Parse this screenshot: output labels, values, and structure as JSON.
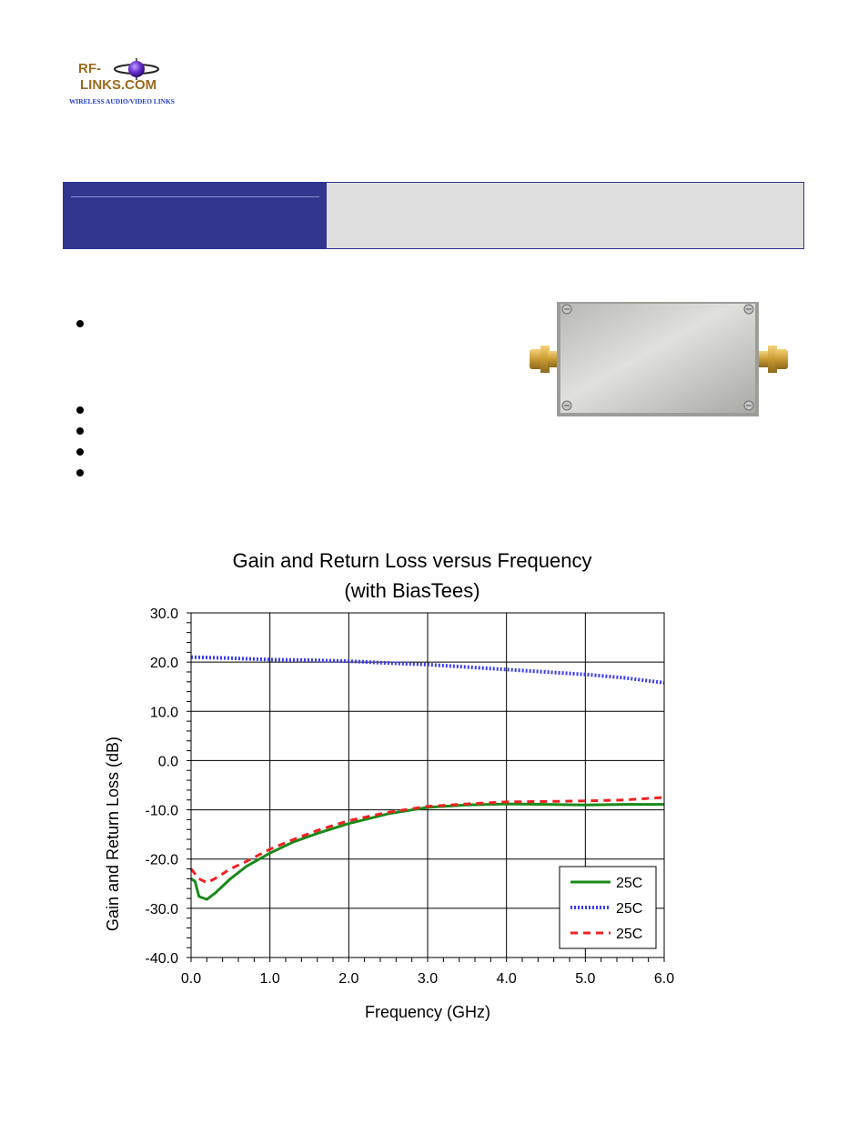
{
  "logo": {
    "line1": "RF-",
    "line2": "LINKS.COM",
    "tagline": "WIRELESS AUDIO/VIDEO LINKS"
  },
  "colors": {
    "header_left": "#33368f",
    "header_right": "#dedede",
    "series_green": "#1a8a1a",
    "series_blue": "#3c3cf0",
    "series_red": "#ee2222"
  },
  "chart_data": {
    "type": "line",
    "title_line1": "Gain and Return Loss versus Frequency",
    "title_line2": "(with BiasTees)",
    "xlabel": "Frequency (GHz)",
    "ylabel": "Gain and Return Loss (dB)",
    "xlim": [
      0.0,
      6.0
    ],
    "ylim": [
      -40.0,
      30.0
    ],
    "x_ticks": [
      "0.0",
      "1.0",
      "2.0",
      "3.0",
      "4.0",
      "5.0",
      "6.0"
    ],
    "y_ticks": [
      "30.0",
      "20.0",
      "10.0",
      "0.0",
      "-10.0",
      "-20.0",
      "-30.0",
      "-40.0"
    ],
    "grid": true,
    "legend_position": "bottom-right",
    "series": [
      {
        "name": "25C",
        "style": "solid",
        "color": "#1a8a1a",
        "x": [
          0.0,
          0.05,
          0.1,
          0.2,
          0.3,
          0.5,
          0.7,
          1.0,
          1.3,
          1.6,
          2.0,
          2.5,
          3.0,
          3.5,
          4.0,
          4.5,
          5.0,
          5.5,
          6.0
        ],
        "y": [
          -24.0,
          -24.5,
          -27.6,
          -28.2,
          -27.0,
          -24.0,
          -21.5,
          -18.8,
          -16.5,
          -14.8,
          -12.8,
          -10.8,
          -9.5,
          -9.0,
          -8.8,
          -8.9,
          -9.0,
          -8.9,
          -8.9
        ]
      },
      {
        "name": "25C",
        "style": "dotted",
        "color": "#3c3cf0",
        "x": [
          0.0,
          0.5,
          1.0,
          1.5,
          2.0,
          2.5,
          3.0,
          3.5,
          4.0,
          4.5,
          5.0,
          5.5,
          6.0
        ],
        "y": [
          21.0,
          20.8,
          20.5,
          20.4,
          20.2,
          19.8,
          19.5,
          19.0,
          18.5,
          18.0,
          17.5,
          16.8,
          15.8
        ]
      },
      {
        "name": "25C",
        "style": "dashed",
        "color": "#ee2222",
        "x": [
          0.0,
          0.05,
          0.1,
          0.2,
          0.3,
          0.5,
          0.7,
          1.0,
          1.3,
          1.6,
          2.0,
          2.5,
          3.0,
          3.5,
          4.0,
          4.5,
          5.0,
          5.5,
          6.0
        ],
        "y": [
          -22.0,
          -23.0,
          -24.0,
          -24.8,
          -24.0,
          -22.0,
          -20.5,
          -18.0,
          -16.0,
          -14.2,
          -12.2,
          -10.5,
          -9.3,
          -8.8,
          -8.4,
          -8.3,
          -8.2,
          -8.0,
          -7.5
        ]
      }
    ]
  }
}
